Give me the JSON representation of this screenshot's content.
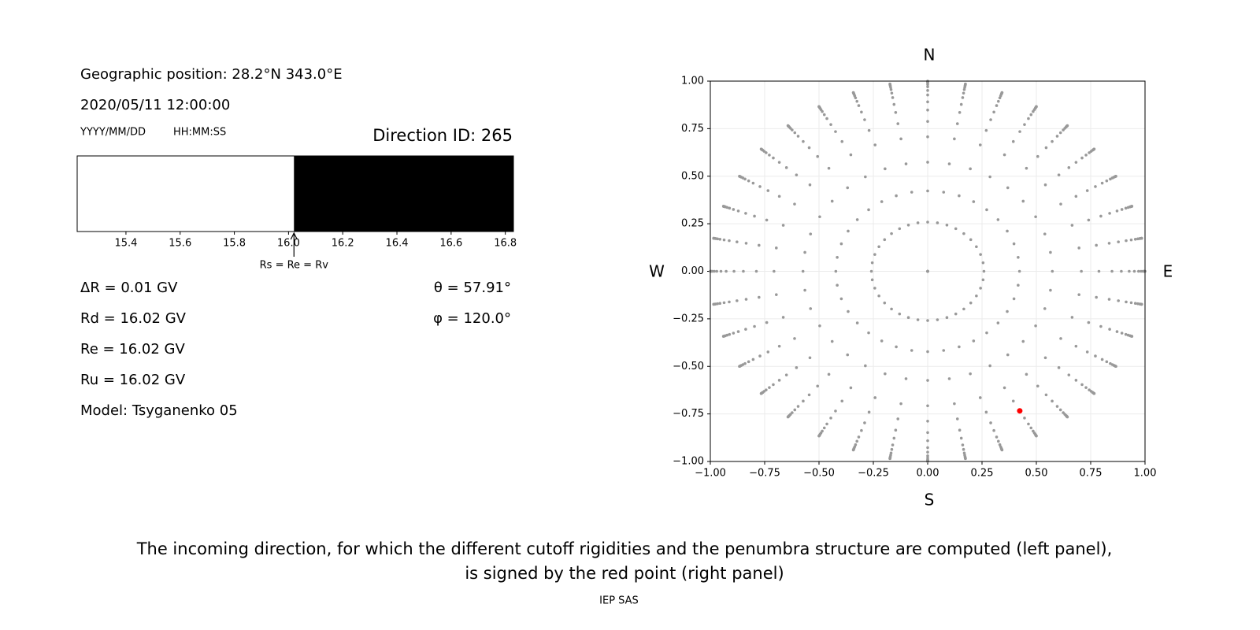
{
  "left_panel": {
    "position": "Geographic position: 28.2°N 343.0°E",
    "datetime": "2020/05/11 12:00:00",
    "date_format": "YYYY/MM/DD",
    "time_format": "HH:MM:SS",
    "direction_id": "Direction ID: 265",
    "stats": [
      "ΔR = 0.01 GV",
      "Rd = 16.02 GV",
      "Re = 16.02 GV",
      "Ru = 16.02 GV",
      "Model: Tsyganenko 05"
    ],
    "angles": [
      "θ = 57.91°",
      "φ = 120.0°"
    ]
  },
  "chart_data": [
    {
      "type": "penumbra",
      "xlim": [
        15.22,
        16.83
      ],
      "xticks": [
        15.4,
        15.6,
        15.8,
        {
          "value": 16,
          "label": "16.0"
        },
        16.2,
        16.4,
        16.6,
        16.8
      ],
      "forbidden": [
        [
          16.02,
          16.83
        ]
      ],
      "color": "#000000",
      "arrow": {
        "value": 16.02,
        "label": "Rs = Re = Rv"
      }
    },
    {
      "type": "sky",
      "xlim": [
        -1,
        1
      ],
      "ylim": [
        -1,
        1
      ],
      "xticks": [
        {
          "value": -1,
          "label": "−1.00"
        },
        {
          "value": -0.75,
          "label": "−0.75"
        },
        {
          "value": -0.5,
          "label": "−0.50"
        },
        {
          "value": -0.25,
          "label": "−0.25"
        },
        {
          "value": 0,
          "label": "0.00"
        },
        {
          "value": 0.25,
          "label": "0.25"
        },
        {
          "value": 0.5,
          "label": "0.50"
        },
        {
          "value": 0.75,
          "label": "0.75"
        },
        {
          "value": 1,
          "label": "1.00"
        }
      ],
      "yticks": [
        {
          "value": -1,
          "label": "−1.00"
        },
        {
          "value": -0.75,
          "label": "−0.75"
        },
        {
          "value": -0.5,
          "label": "−0.50"
        },
        {
          "value": -0.25,
          "label": "−0.25"
        },
        {
          "value": 0,
          "label": "0.00"
        },
        {
          "value": 0.25,
          "label": "0.25"
        },
        {
          "value": 0.5,
          "label": "0.50"
        },
        {
          "value": 0.75,
          "label": "0.75"
        },
        {
          "value": 1,
          "label": "1.00"
        }
      ],
      "grid": true,
      "compass": {
        "N": "N",
        "S": "S",
        "W": "W",
        "E": "E"
      },
      "zenith": [
        0,
        15,
        25,
        35,
        45,
        52,
        58,
        63,
        68,
        72,
        76,
        79,
        82,
        84,
        86,
        88,
        90
      ],
      "azimuth": [
        0,
        10,
        20,
        30,
        40,
        50,
        60,
        70,
        80,
        90,
        100,
        110,
        120,
        130,
        140,
        150,
        160,
        170,
        180,
        190,
        200,
        210,
        220,
        230,
        240,
        250,
        260,
        270,
        280,
        290,
        300,
        310,
        320,
        330,
        340,
        350
      ],
      "color": "#999999",
      "highlight": {
        "zenith": 57.91,
        "azimuth": 120.0,
        "color": "#ff0000"
      }
    }
  ],
  "caption": [
    "The incoming direction, for which the different cutoff rigidities and the penumbra structure are computed (left panel),",
    "is signed by the red point (right panel)"
  ],
  "footer": "IEP SAS"
}
